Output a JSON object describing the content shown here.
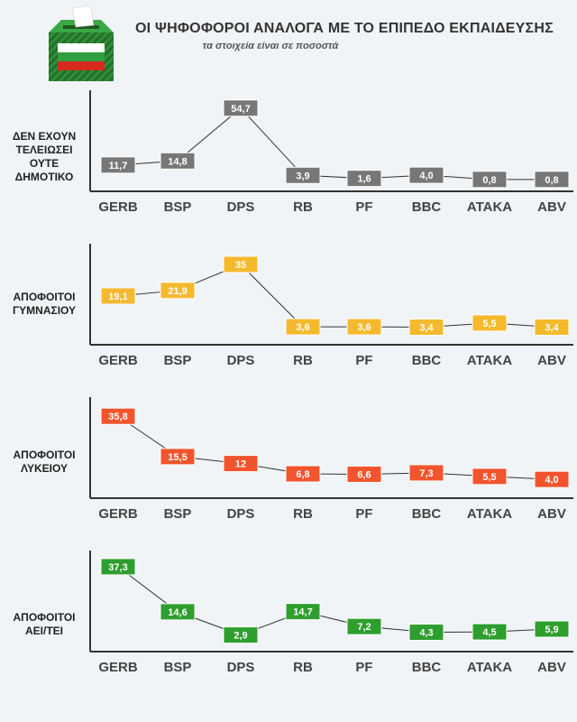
{
  "header": {
    "title": "ΟΙ ΨΗΦΟΦΟΡΟΙ ΑΝΑΛΟΓΑ ΜΕ ΤΟ ΕΠΙΠΕΔΟ ΕΚΠΑΙΔΕΥΣΗΣ",
    "subtitle": "τα στοιχεία είναι σε ποσοστά",
    "logo_icon": "ballot-box-icon",
    "flag_colors": [
      "#ffffff",
      "#2e9e3e",
      "#d62a1e"
    ]
  },
  "chart_data": [
    {
      "type": "line",
      "panel_label": [
        "ΔΕΝ ΕΧΟΥΝ",
        "ΤΕΛΕΙΩΣΕΙ",
        "ΟΥΤΕ",
        "ΔΗΜΟΤΙΚΟ"
      ],
      "color": "#777777",
      "categories": [
        "GERB",
        "BSP",
        "DPS",
        "RB",
        "PF",
        "BBC",
        "ATAKA",
        "ABV"
      ],
      "values": [
        11.7,
        14.8,
        54.7,
        3.9,
        1.6,
        4.0,
        0.8,
        0.8
      ],
      "value_labels": [
        "11,7",
        "14,8",
        "54,7",
        "3,9",
        "1,6",
        "4,0",
        "0,8",
        "0,8"
      ],
      "ylim": [
        0,
        60
      ]
    },
    {
      "type": "line",
      "panel_label": [
        "ΑΠΟΦΟΙΤΟΙ",
        "ΓΥΜΝΑΣΙΟΥ"
      ],
      "color": "#f5b92e",
      "categories": [
        "GERB",
        "BSP",
        "DPS",
        "RB",
        "PF",
        "BBC",
        "ATAKA",
        "ABV"
      ],
      "values": [
        19.1,
        21.9,
        35,
        3.6,
        3.6,
        3.4,
        5.5,
        3.4
      ],
      "value_labels": [
        "19,1",
        "21,9",
        "35",
        "3,6",
        "3,6",
        "3,4",
        "5,5",
        "3,4"
      ],
      "ylim": [
        0,
        40
      ]
    },
    {
      "type": "line",
      "panel_label": [
        "ΑΠΟΦΟΙΤΟΙ",
        "ΛΥΚΕΙΟΥ"
      ],
      "color": "#f2542d",
      "categories": [
        "GERB",
        "BSP",
        "DPS",
        "RB",
        "PF",
        "BBC",
        "ATAKA",
        "ABV"
      ],
      "values": [
        35.8,
        15.5,
        12,
        6.8,
        6.6,
        7.3,
        5.5,
        4.0
      ],
      "value_labels": [
        "35,8",
        "15,5",
        "12",
        "6,8",
        "6,6",
        "7,3",
        "5,5",
        "4,0"
      ],
      "ylim": [
        0,
        40
      ]
    },
    {
      "type": "line",
      "panel_label": [
        "ΑΠΟΦΟΙΤΟΙ",
        "ΑΕΙ/ΤΕΙ"
      ],
      "color": "#2e9e2e",
      "categories": [
        "GERB",
        "BSP",
        "DPS",
        "RB",
        "PF",
        "BBC",
        "ATAKA",
        "ABV"
      ],
      "values": [
        37.3,
        14.6,
        2.9,
        14.7,
        7.2,
        4.3,
        4.5,
        5.9
      ],
      "value_labels": [
        "37,3",
        "14,6",
        "2,9",
        "14,7",
        "7,2",
        "4,3",
        "4,5",
        "5,9"
      ],
      "ylim": [
        0,
        40
      ]
    }
  ]
}
